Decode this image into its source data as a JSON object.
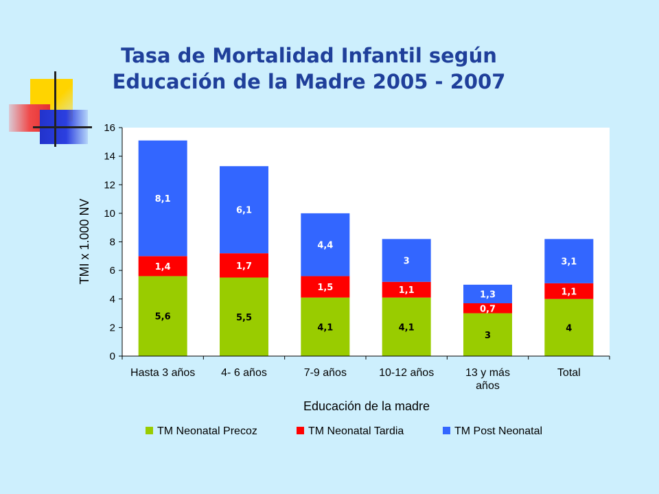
{
  "title_line1": "Tasa de Mortalidad Infantil según",
  "title_line2": "Educación de la Madre 2005 - 2007",
  "colors": {
    "background": "#cdeffd",
    "title": "#1f3f9a",
    "neonatal_precoz": "#99cc00",
    "neonatal_tardia": "#ff0000",
    "post_neonatal": "#3366ff"
  },
  "chart_data": {
    "type": "bar",
    "stacked": true,
    "categories": [
      [
        "Hasta 3 años"
      ],
      [
        "4- 6 años"
      ],
      [
        "7-9 años"
      ],
      [
        "10-12 años"
      ],
      [
        "13 y más",
        "años"
      ],
      [
        "Total"
      ]
    ],
    "series": [
      {
        "name": "TM Neonatal Precoz",
        "values": [
          5.6,
          5.5,
          4.1,
          4.1,
          3,
          4
        ],
        "labels": [
          "5,6",
          "5,5",
          "4,1",
          "4,1",
          "3",
          "4"
        ],
        "color": "#99cc00",
        "label_color": "#000000"
      },
      {
        "name": "TM Neonatal Tardia",
        "values": [
          1.4,
          1.7,
          1.5,
          1.1,
          0.7,
          1.1
        ],
        "labels": [
          "1,4",
          "1,7",
          "1,5",
          "1,1",
          "0,7",
          "1,1"
        ],
        "color": "#ff0000",
        "label_color": "#ffffff"
      },
      {
        "name": "TM Post Neonatal",
        "values": [
          8.1,
          6.1,
          4.4,
          3,
          1.3,
          3.1
        ],
        "labels": [
          "8,1",
          "6,1",
          "4,4",
          "3",
          "1,3",
          "3,1"
        ],
        "color": "#3366ff",
        "label_color": "#ffffff"
      }
    ],
    "xlabel": "Educación de la madre",
    "ylabel": "TMI x 1.000 NV",
    "ylim": [
      0,
      16
    ],
    "yticks": [
      0,
      2,
      4,
      6,
      8,
      10,
      12,
      14,
      16
    ],
    "legend_position": "bottom",
    "grid": false
  }
}
